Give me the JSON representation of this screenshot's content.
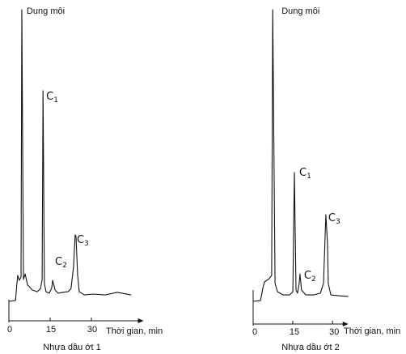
{
  "chart_data": [
    {
      "type": "line",
      "title": "Nhựa dầu ớt 1",
      "xlabel": "Thời gian, min",
      "xticks": [
        0,
        15,
        30
      ],
      "xlim": [
        0,
        49
      ],
      "ylim": [
        0,
        100
      ],
      "grid": false,
      "series": [
        {
          "x": [
            0,
            2.4,
            2.9,
            3.2,
            3.8,
            4.4,
            4.7,
            5.3,
            5.9,
            6.8,
            8.5,
            10.3,
            11.5,
            12.1,
            12.4,
            12.9,
            13.5,
            14.7,
            15.6,
            15.9,
            16.2,
            16.8,
            17.9,
            19.7,
            21.5,
            22.6,
            23.5,
            24.1,
            24.4,
            25.0,
            25.6,
            27.4,
            30.6,
            35.0,
            39.4,
            44.4
          ],
          "y": [
            0,
            0.3,
            6.1,
            8.9,
            7.2,
            8.3,
            100,
            7.5,
            9.4,
            5.6,
            3.9,
            3.3,
            4.4,
            7.5,
            72.2,
            6.1,
            3.3,
            2.8,
            4.7,
            7.2,
            6.1,
            3.9,
            2.8,
            3.1,
            3.3,
            4.4,
            11.7,
            22.8,
            22.2,
            8.9,
            3.3,
            2.2,
            2.5,
            2.2,
            3.1,
            2.2
          ]
        }
      ],
      "peaks": [
        {
          "label": "Dung môi",
          "x": 4.7,
          "y": 100
        },
        {
          "label": "C",
          "sub": "1",
          "x": 12.4,
          "y": 72.2
        },
        {
          "label": "C",
          "sub": "2",
          "x": 15.9,
          "y": 7.2
        },
        {
          "label": "C",
          "sub": "3",
          "x": 24.1,
          "y": 22.8
        }
      ]
    },
    {
      "type": "line",
      "title": "Nhựa dầu ớt 2",
      "xlabel": "Thời gian, min",
      "xticks": [
        0,
        15,
        30
      ],
      "xlim": [
        0,
        36
      ],
      "ylim": [
        0,
        100
      ],
      "grid": false,
      "series": [
        {
          "x": [
            0,
            2.8,
            3.7,
            4.3,
            5.2,
            6.1,
            7.0,
            7.4,
            8.3,
            9.2,
            11.3,
            13.8,
            15.0,
            15.6,
            16.2,
            16.8,
            17.4,
            17.7,
            18.3,
            19.9,
            22.9,
            25.4,
            26.6,
            27.5,
            28.1,
            28.4,
            29.4,
            32.7,
            36.0
          ],
          "y": [
            0,
            0.3,
            4.7,
            6.7,
            7.2,
            7.8,
            8.9,
            100,
            6.1,
            3.3,
            2.2,
            2.2,
            3.3,
            44.2,
            3.9,
            2.8,
            6.1,
            9.4,
            3.9,
            2.2,
            2.2,
            2.8,
            6.1,
            29.7,
            20.0,
            6.1,
            2.2,
            1.9,
            1.7
          ]
        }
      ],
      "peaks": [
        {
          "label": "Dung môi",
          "x": 7.4,
          "y": 100
        },
        {
          "label": "C",
          "sub": "1",
          "x": 15.6,
          "y": 44.2
        },
        {
          "label": "C",
          "sub": "2",
          "x": 17.7,
          "y": 9.4
        },
        {
          "label": "C",
          "sub": "3",
          "x": 27.5,
          "y": 29.7
        }
      ]
    }
  ]
}
